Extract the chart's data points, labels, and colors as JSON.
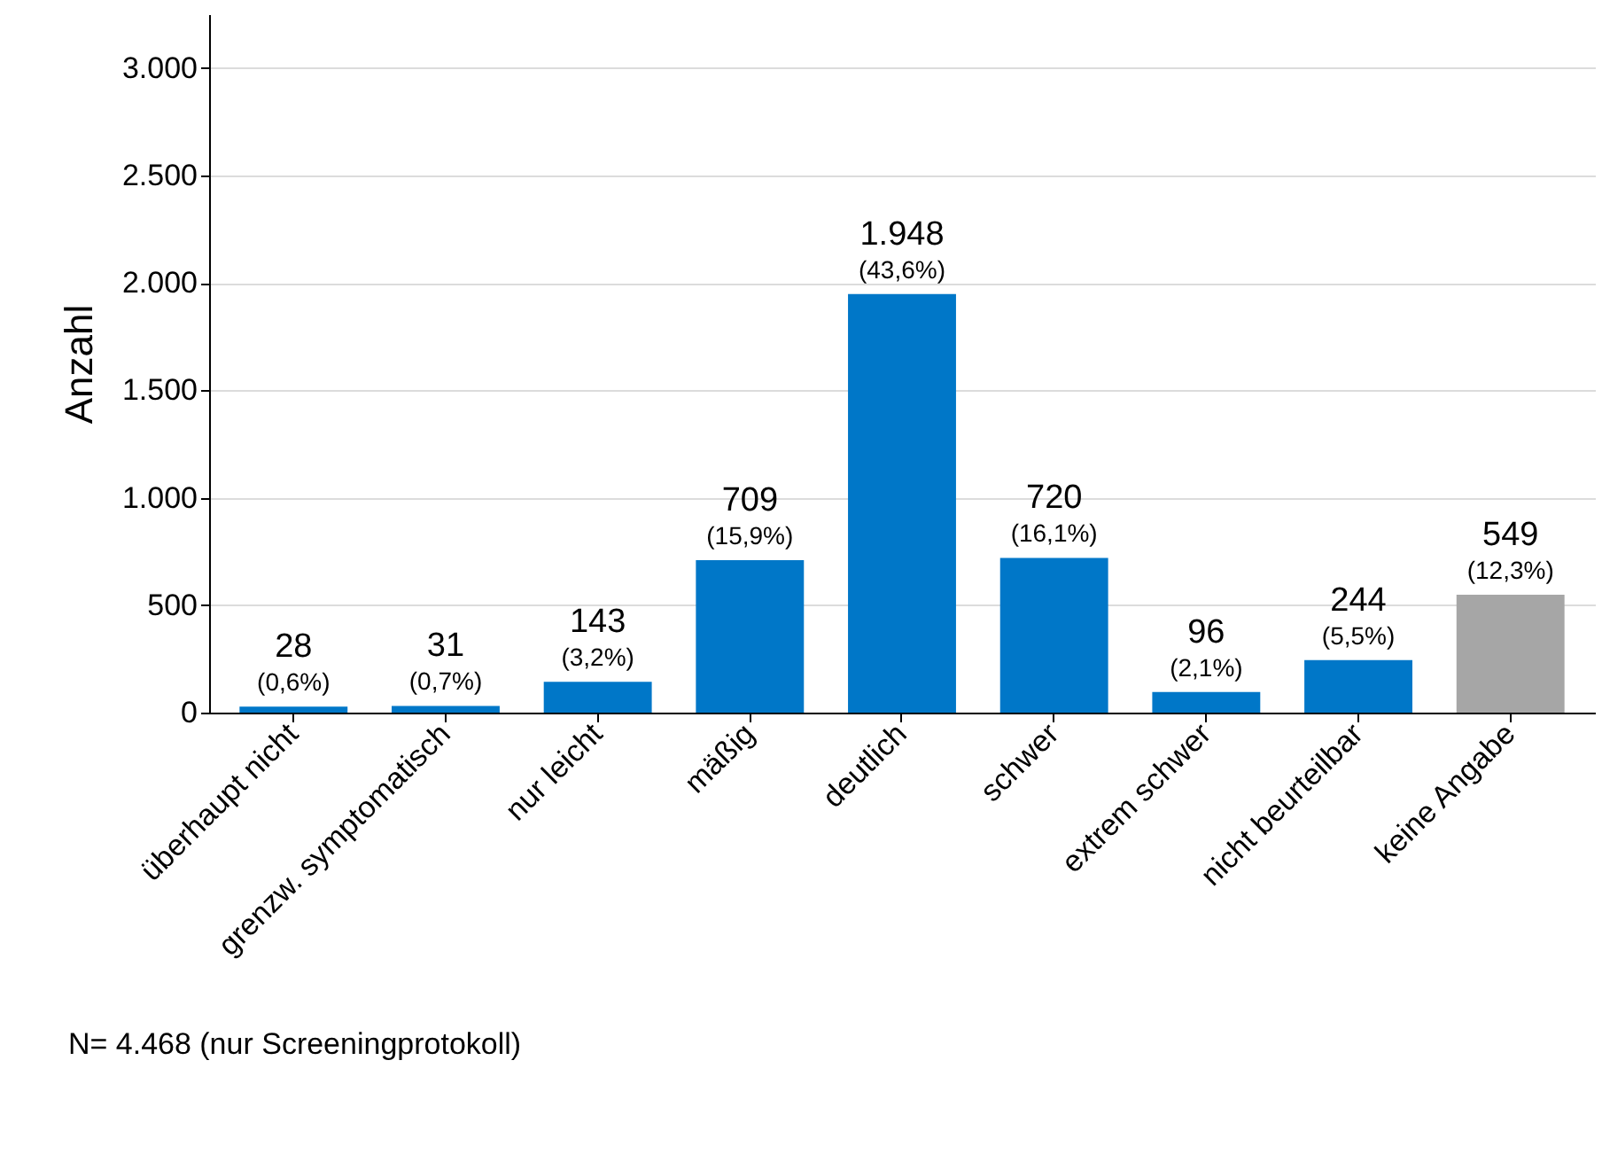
{
  "chart_data": {
    "type": "bar",
    "ylabel": "Anzahl",
    "categories": [
      "überhaupt nicht",
      "grenzw. symptomatisch",
      "nur leicht",
      "mäßig",
      "deutlich",
      "schwer",
      "extrem schwer",
      "nicht beurteilbar",
      "keine Angabe"
    ],
    "values": [
      28,
      31,
      143,
      709,
      1948,
      720,
      96,
      244,
      549
    ],
    "colors": [
      "#0077c8",
      "#0077c8",
      "#0077c8",
      "#0077c8",
      "#0077c8",
      "#0077c8",
      "#0077c8",
      "#0077c8",
      "#a6a6a6"
    ],
    "value_labels": [
      "28 (0,6%)",
      "31 (0,7%)",
      "143 (3,2%)",
      "709 (15,9%)",
      "1.948 (43,6%)",
      "720 (16,1%)",
      "96 (2,1%)",
      "244 (5,5%)",
      "549 (12,3%)"
    ],
    "ylim": [
      0,
      3250
    ],
    "yticks": [
      {
        "value": 0,
        "label": "0"
      },
      {
        "value": 500,
        "label": "500"
      },
      {
        "value": 1000,
        "label": "1.000"
      },
      {
        "value": 1500,
        "label": "1.500"
      },
      {
        "value": 2000,
        "label": "2.000"
      },
      {
        "value": 2500,
        "label": "2.500"
      },
      {
        "value": 3000,
        "label": "3.000"
      }
    ],
    "grid": "y",
    "annotations": [
      "N= 4.468 (nur Screeningprotokoll)"
    ]
  }
}
